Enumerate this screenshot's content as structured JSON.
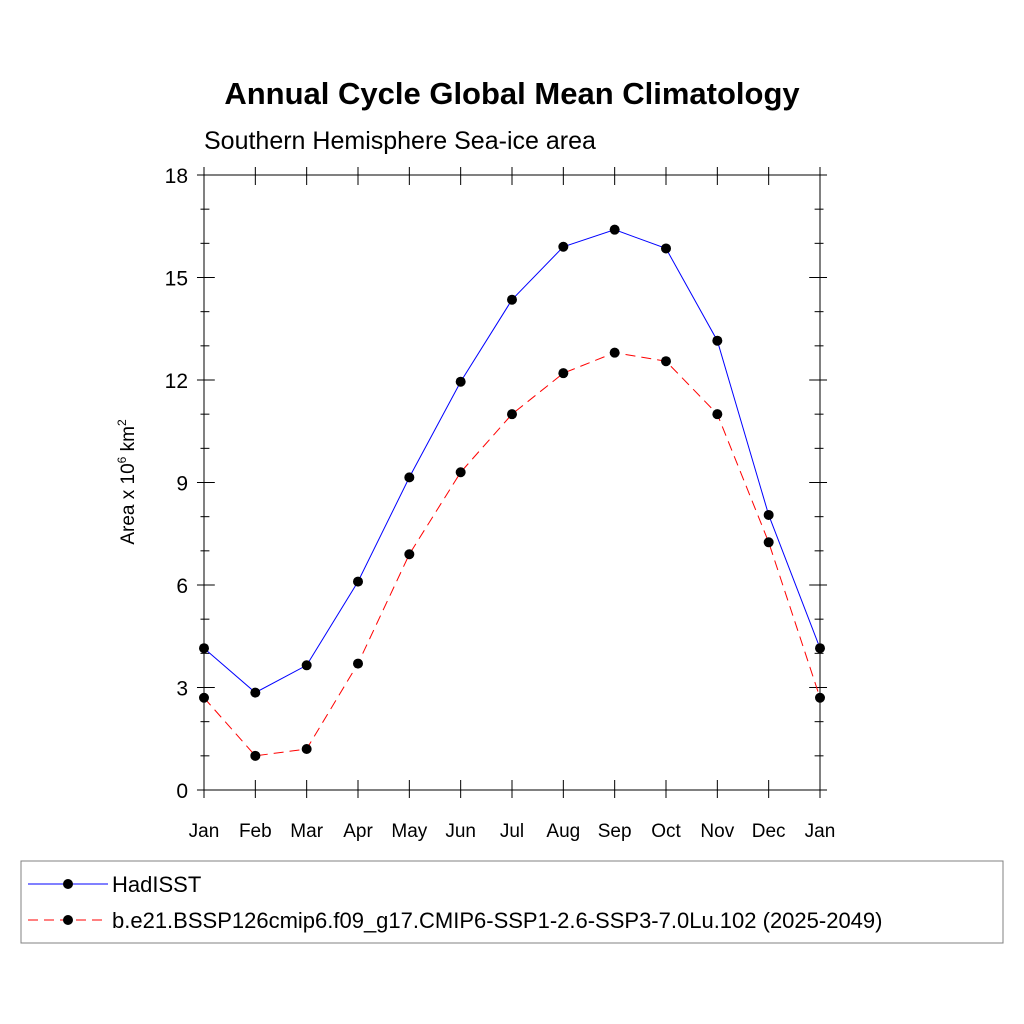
{
  "chart_data": {
    "type": "line",
    "title": "Annual Cycle Global Mean Climatology",
    "subtitle": "Southern Hemisphere Sea-ice area",
    "ylabel": {
      "base": "Area x 10",
      "exp1": "6",
      "mid": " km",
      "exp2": "2"
    },
    "categories": [
      "Jan",
      "Feb",
      "Mar",
      "Apr",
      "May",
      "Jun",
      "Jul",
      "Aug",
      "Sep",
      "Oct",
      "Nov",
      "Dec",
      "Jan"
    ],
    "ylim": [
      0,
      18
    ],
    "yticks": [
      0,
      3,
      6,
      9,
      12,
      15,
      18
    ],
    "grid": false,
    "legend_position": "bottom",
    "series": [
      {
        "name": "HadISST",
        "color": "#0000ff",
        "dash": "solid",
        "marker": "circle",
        "values": [
          4.15,
          2.85,
          3.65,
          6.1,
          9.15,
          11.95,
          14.35,
          15.9,
          16.4,
          15.85,
          13.15,
          8.05,
          4.15
        ]
      },
      {
        "name": "b.e21.BSSP126cmip6.f09_g17.CMIP6-SSP1-2.6-SSP3-7.0Lu.102 (2025-2049)",
        "color": "#ff0000",
        "dash": "dashed",
        "marker": "circle",
        "values": [
          2.7,
          1.0,
          1.2,
          3.7,
          6.9,
          9.3,
          11.0,
          12.2,
          12.8,
          12.55,
          11.0,
          7.25,
          2.7
        ]
      }
    ]
  }
}
